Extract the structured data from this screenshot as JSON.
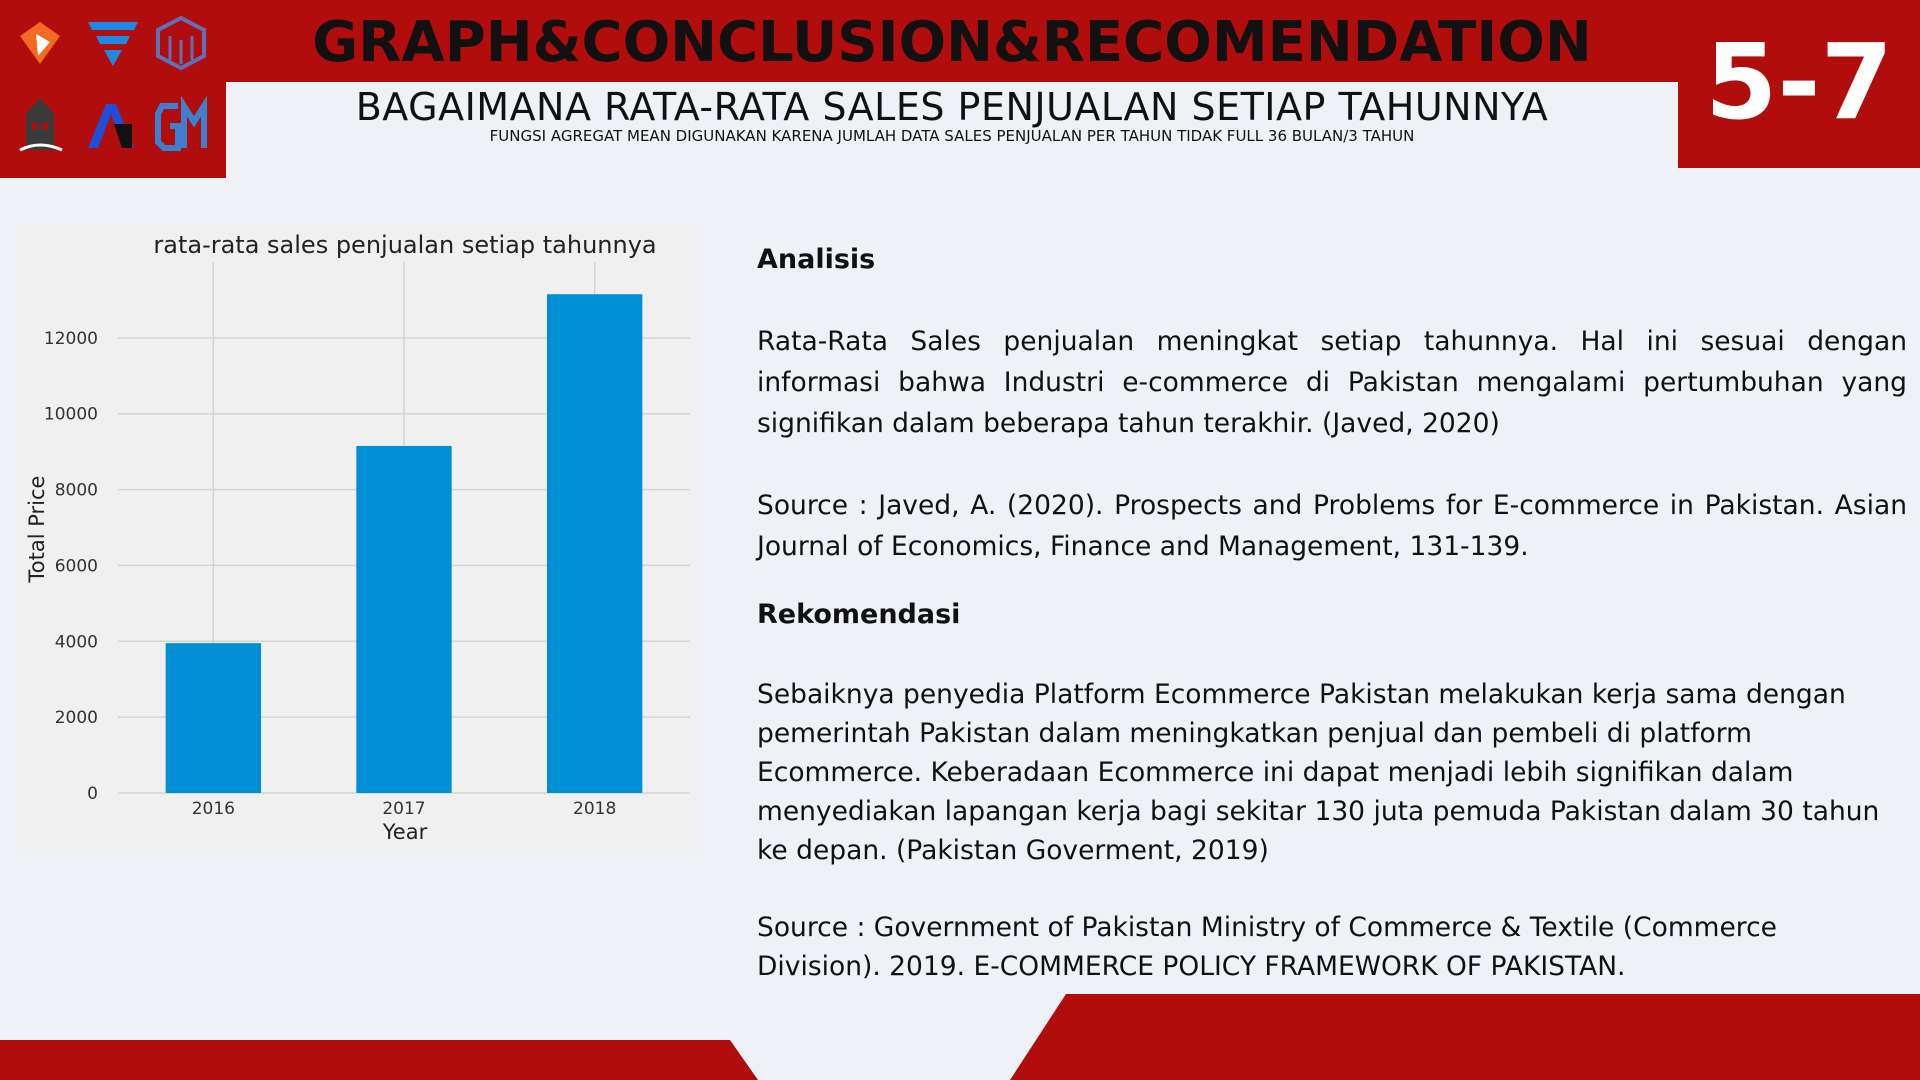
{
  "header": {
    "title": "GRAPH&CONCLUSION&RECOMENDATION",
    "section_number": "5-7",
    "question": "BAGAIMANA RATA-RATA SALES PENJUALAN SETIAP TAHUNNYA",
    "note": "FUNGSI AGREGAT MEAN DIGUNAKAN KARENA JUMLAH DATA SALES PENJUALAN PER TAHUN TIDAK FULL 36 BULAN/3 TAHUN"
  },
  "logos": [
    "diamond-logo",
    "v-logo",
    "cube-logo",
    "building-logo",
    "a-logo",
    "gm-logo"
  ],
  "colors": {
    "brand_red": "#b20d0d",
    "bar_blue": "#008fd5",
    "background": "#eef2f6"
  },
  "chart_data": {
    "type": "bar",
    "title": "rata-rata sales penjualan setiap tahunnya",
    "xlabel": "Year",
    "ylabel": "Total Price",
    "categories": [
      "2016",
      "2017",
      "2018"
    ],
    "values": [
      3950,
      9150,
      13150
    ],
    "ylim": [
      0,
      14000
    ],
    "yticks": [
      0,
      2000,
      4000,
      6000,
      8000,
      10000,
      12000
    ],
    "grid": true,
    "bar_color": "#008fd5"
  },
  "analysis": {
    "heading": "Analisis",
    "body": "Rata-Rata Sales penjualan meningkat setiap tahunnya. Hal ini sesuai dengan informasi bahwa Industri e-commerce di Pakistan mengalami pertumbuhan yang signifikan dalam beberapa tahun terakhir. (Javed, 2020)",
    "source": "Source : Javed, A. (2020). Prospects and Problems for E-commerce in Pakistan. Asian Journal of Economics, Finance and Management, 131-139."
  },
  "recommendation": {
    "heading": "Rekomendasi",
    "body": "Sebaiknya penyedia Platform Ecommerce Pakistan melakukan kerja sama dengan pemerintah Pakistan dalam meningkatkan penjual dan pembeli di platform Ecommerce. Keberadaan Ecommerce ini dapat menjadi lebih signifikan dalam menyediakan lapangan kerja bagi sekitar 130 juta pemuda Pakistan dalam 30 tahun ke depan. (Pakistan Goverment, 2019)",
    "source": "Source : Government of Pakistan Ministry of Commerce & Textile (Commerce Division). 2019. E-COMMERCE POLICY FRAMEWORK OF PAKISTAN."
  }
}
